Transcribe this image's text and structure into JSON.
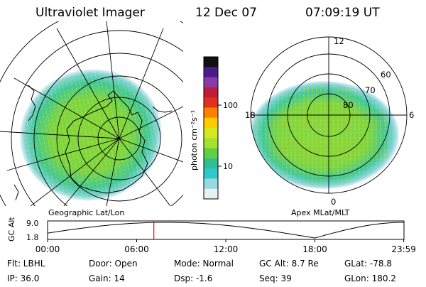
{
  "header": {
    "title": "Ultraviolet Imager",
    "date": "12 Dec 07",
    "time": "07:09:19 UT"
  },
  "colorbar": {
    "label": "photon cm⁻²s⁻¹",
    "ticks": [
      "100",
      "10"
    ],
    "colors": [
      "#101010",
      "#4a1a8a",
      "#8a3aa8",
      "#c21a3a",
      "#e03020",
      "#ff7f00",
      "#ffcc00",
      "#d8e820",
      "#a8e030",
      "#60d040",
      "#30c090",
      "#30c8d0",
      "#9ad8e0",
      "#e8f0f4"
    ]
  },
  "geo_panel": {
    "caption": "Geographic Lat/Lon"
  },
  "mag_panel": {
    "caption": "Apex MLat/MLT",
    "mlt_labels": {
      "top": "12",
      "right": "6",
      "bottom": "0",
      "left": "18"
    },
    "lat_labels": [
      "60",
      "70",
      "80"
    ]
  },
  "timeline": {
    "axis_label": "GC Alt",
    "y_max": "9.0",
    "y_min": "1.8",
    "x_ticks": [
      "00:00",
      "06:00",
      "12:00",
      "18:00",
      "23:59"
    ],
    "marker_hour": 7.155,
    "marker_color": "#ff0000"
  },
  "info": {
    "flt": "Flt: LBHL",
    "ip": "IP: 36.0",
    "door": "Door: Open",
    "gain": "Gain: 14",
    "mode": "Mode: Normal",
    "dsp": "Dsp:   -1.6",
    "gc_alt": "GC Alt: 8.7 Re",
    "seq": "Seq: 39",
    "glat": "GLat: -78.8",
    "glon": "GLon: 180.2"
  }
}
